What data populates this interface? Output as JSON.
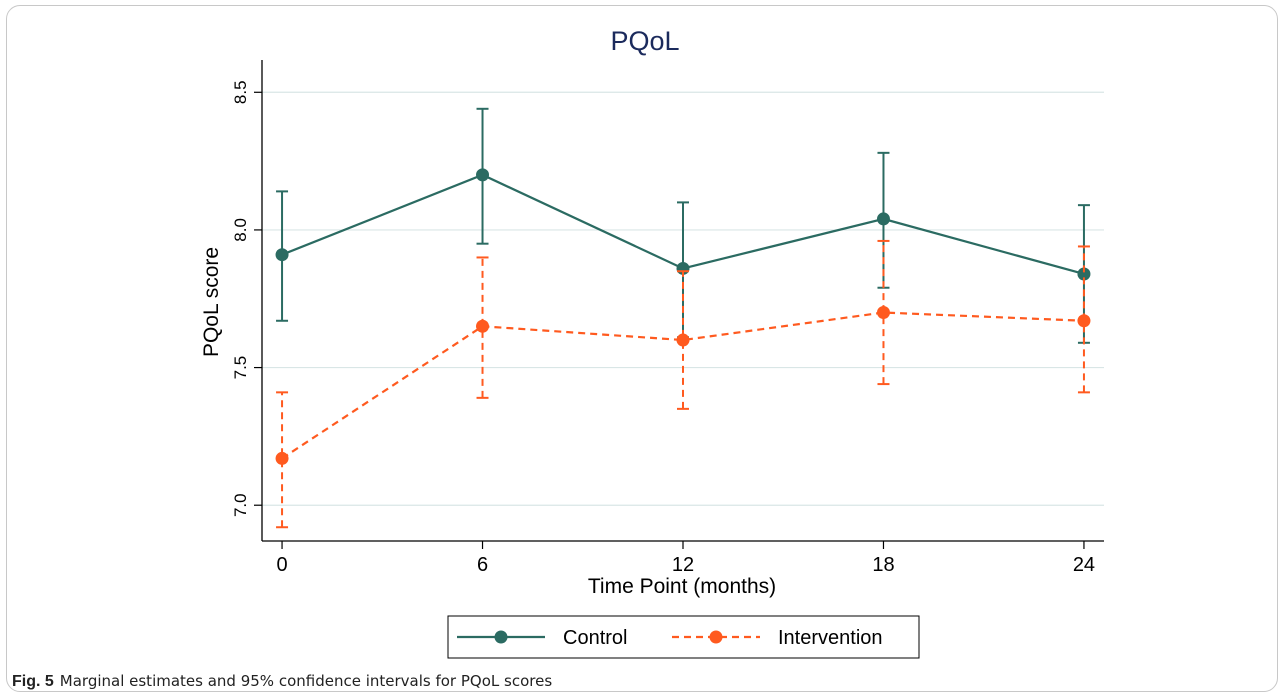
{
  "chart_data": {
    "type": "line",
    "title": "PQoL",
    "xlabel": "Time Point (months)",
    "ylabel": "PQoL score",
    "x": [
      0,
      6,
      12,
      18,
      24
    ],
    "xticks": [
      "0",
      "6",
      "12",
      "18",
      "24"
    ],
    "xlim": [
      -0.6,
      24.6
    ],
    "yticks": [
      "7.0",
      "7.5",
      "8.0",
      "8.5"
    ],
    "ytick_values": [
      7.0,
      7.5,
      8.0,
      8.5
    ],
    "ylim": [
      6.87,
      8.61
    ],
    "grid": true,
    "legend_position": "bottom",
    "series": [
      {
        "name": "Control",
        "color": "#2b6b62",
        "line_style": "solid",
        "values": [
          7.91,
          8.2,
          7.86,
          8.04,
          7.84
        ],
        "ci_low": [
          7.67,
          7.95,
          7.61,
          7.79,
          7.59
        ],
        "ci_high": [
          8.14,
          8.44,
          8.1,
          8.28,
          8.09
        ]
      },
      {
        "name": "Intervention",
        "color": "#ff5a1f",
        "line_style": "dashed",
        "values": [
          7.17,
          7.65,
          7.6,
          7.7,
          7.67
        ],
        "ci_low": [
          6.92,
          7.39,
          7.35,
          7.44,
          7.41
        ],
        "ci_high": [
          7.41,
          7.9,
          7.85,
          7.96,
          7.94
        ]
      }
    ]
  },
  "caption": {
    "label": "Fig. 5",
    "text": "Marginal estimates and 95% confidence intervals for PQoL scores"
  }
}
